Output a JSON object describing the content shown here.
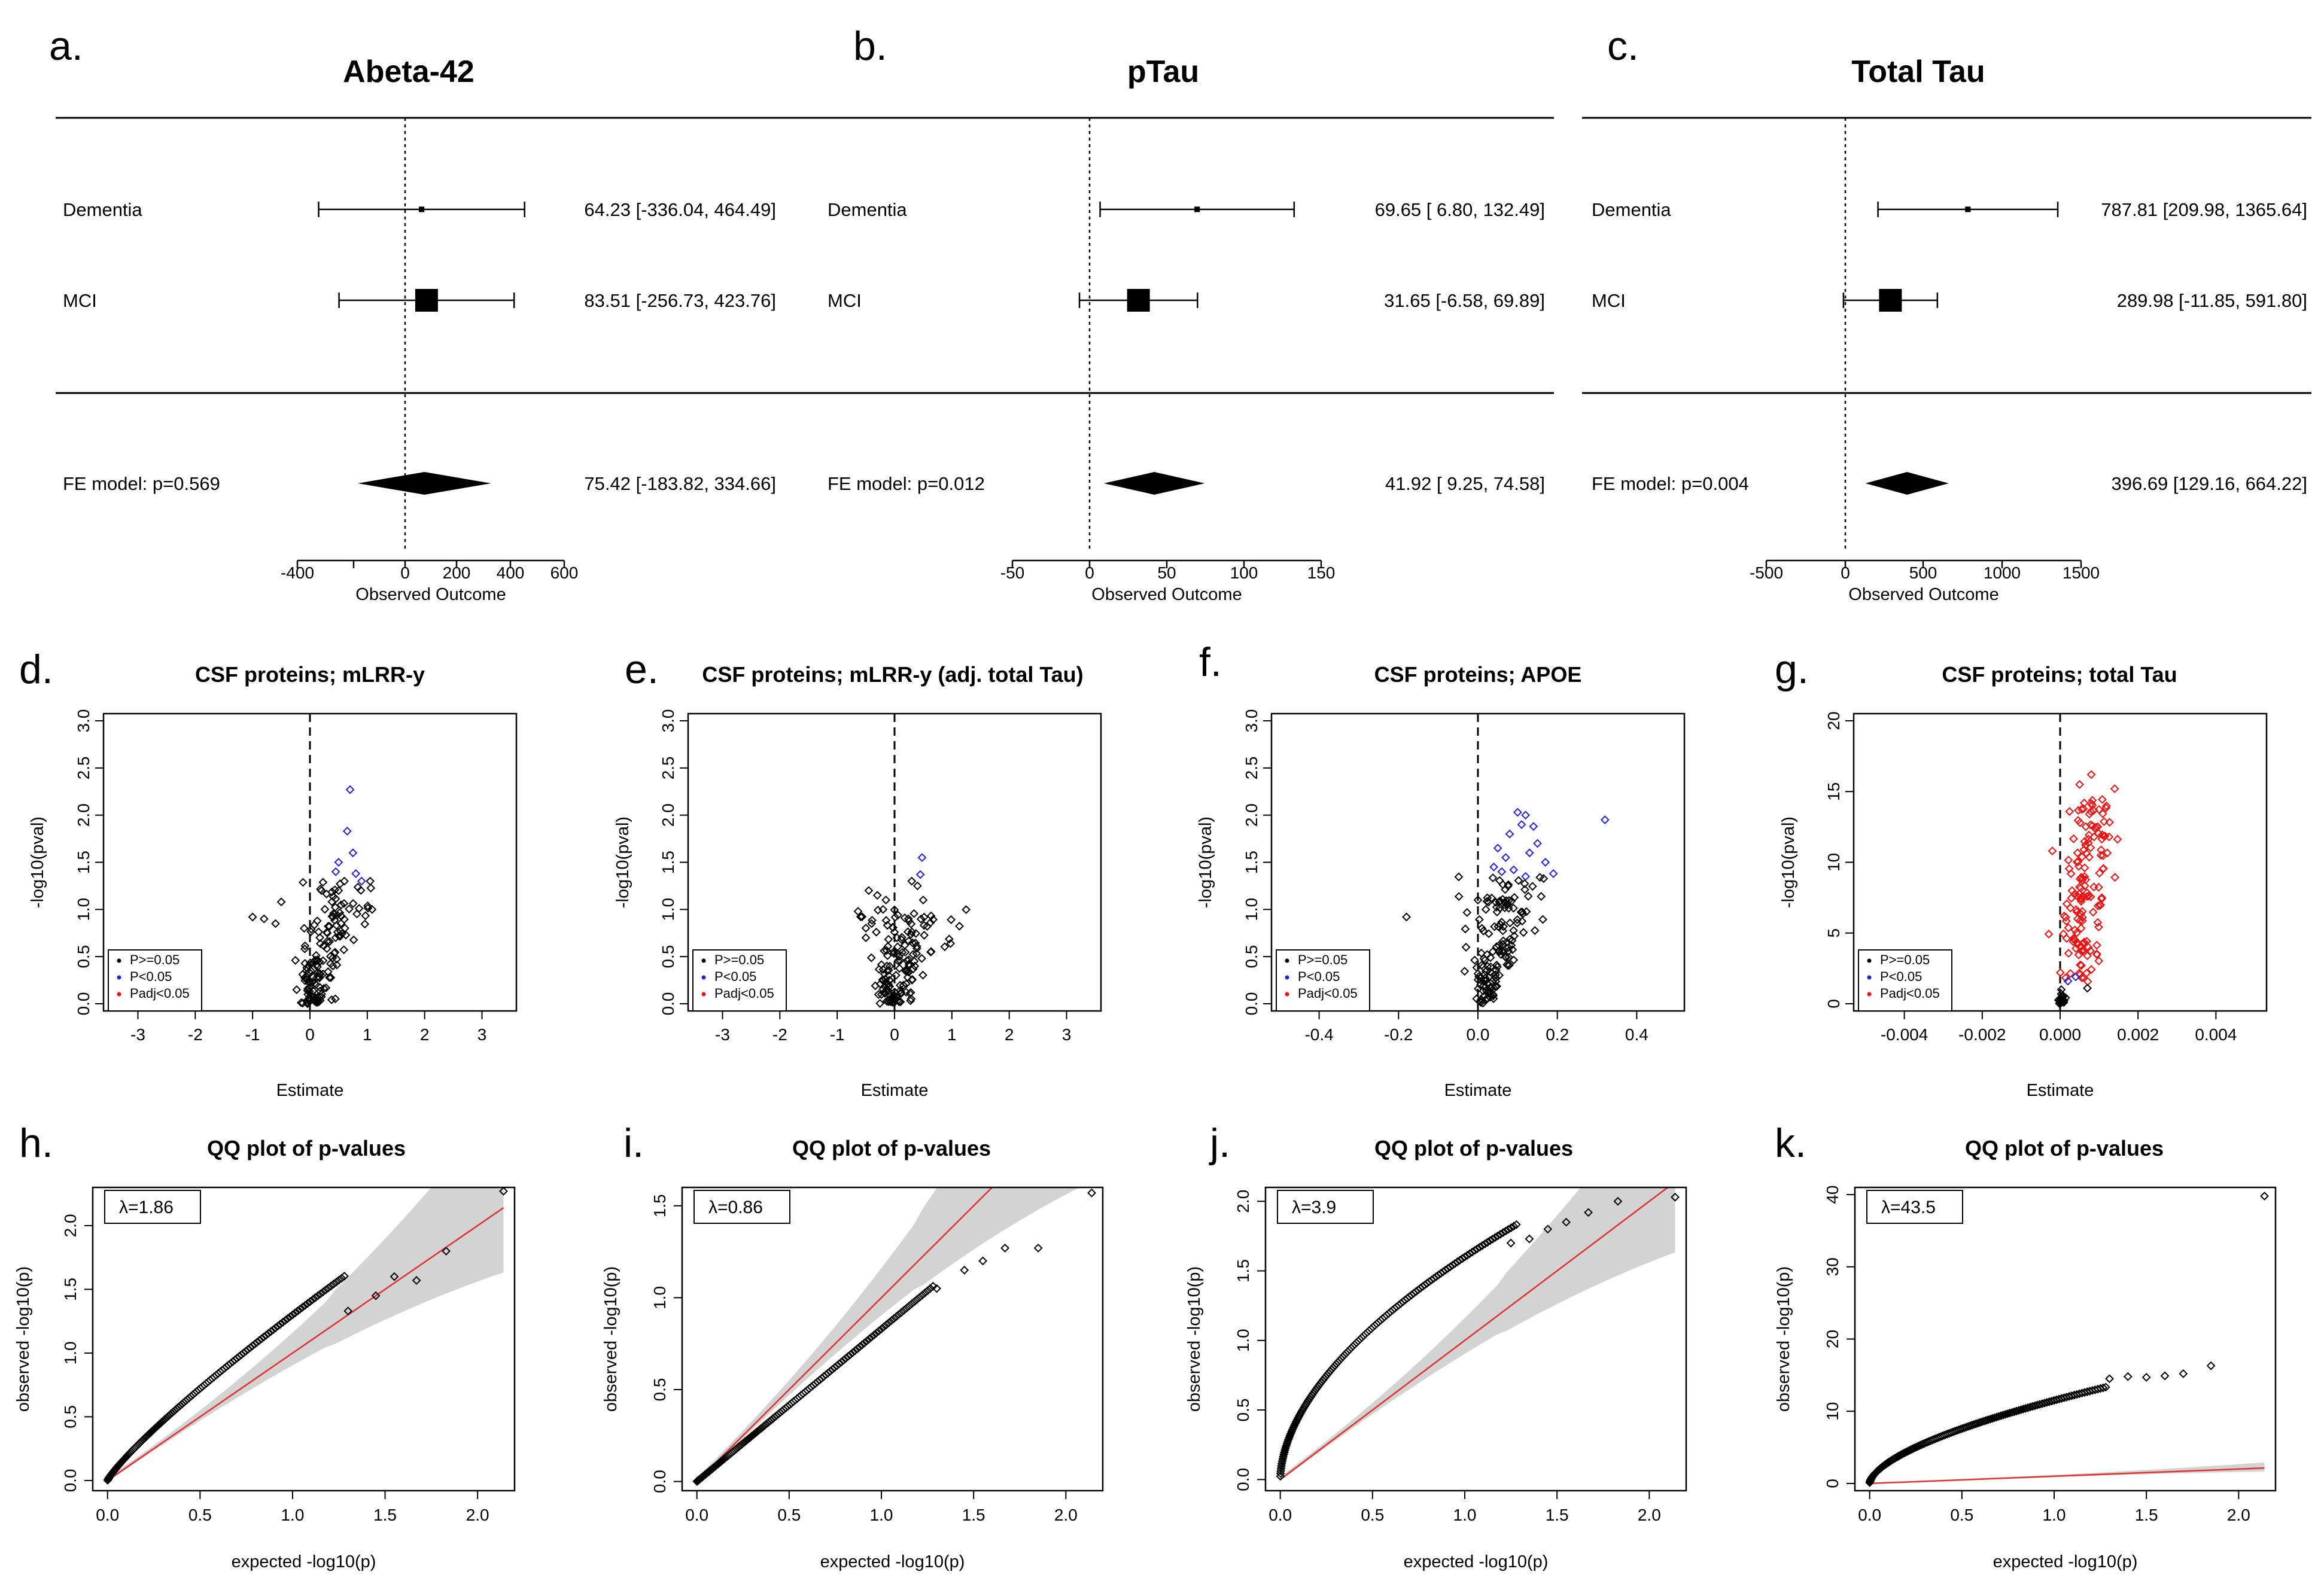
{
  "panels": {
    "a": "a.",
    "b": "b.",
    "c": "c.",
    "d": "d.",
    "e": "e.",
    "f": "f.",
    "g": "g.",
    "h": "h.",
    "i": "i.",
    "j": "j.",
    "k": "k."
  },
  "colors": {
    "p_ge_05": "#000000",
    "p_lt_05": "#2222dd",
    "padj_lt_05": "#ee1111",
    "qq_band": "#d3d3d3",
    "qq_line": "#e03030"
  },
  "chart_data": [
    {
      "id": "a",
      "type": "forest",
      "title": "Abeta-42",
      "xlabel": "Observed Outcome",
      "ticks": [
        -400,
        0,
        200,
        400,
        600
      ],
      "tick_labels": [
        "-400",
        "0",
        "200",
        "400",
        "600"
      ],
      "studies": [
        {
          "label": "Dementia",
          "est": 64.23,
          "lo": -336.04,
          "hi": 464.49,
          "weight": 0.1,
          "text": "64.23 [-336.04, 464.49]"
        },
        {
          "label": "MCI",
          "est": 83.51,
          "lo": -256.73,
          "hi": 423.76,
          "weight": 1.0,
          "text": "83.51 [-256.73, 423.76]"
        }
      ],
      "summary": {
        "label": "FE model: p=0.569",
        "est": 75.42,
        "lo": -183.82,
        "hi": 334.66,
        "text": "75.42 [-183.82, 334.66]"
      }
    },
    {
      "id": "b",
      "type": "forest",
      "title": "pTau",
      "xlabel": "Observed Outcome",
      "ticks": [
        -50,
        0,
        50,
        100,
        150
      ],
      "tick_labels": [
        "-50",
        "0",
        "50",
        "100",
        "150"
      ],
      "studies": [
        {
          "label": "Dementia",
          "est": 69.65,
          "lo": 6.8,
          "hi": 132.49,
          "weight": 0.1,
          "text": "69.65 [ 6.80, 132.49]"
        },
        {
          "label": "MCI",
          "est": 31.65,
          "lo": -6.58,
          "hi": 69.89,
          "weight": 1.0,
          "text": "31.65 [-6.58,  69.89]"
        }
      ],
      "summary": {
        "label": "FE model: p=0.012",
        "est": 41.92,
        "lo": 9.25,
        "hi": 74.58,
        "text": "41.92 [ 9.25,  74.58]"
      }
    },
    {
      "id": "c",
      "type": "forest",
      "title": "Total Tau",
      "xlabel": "Observed Outcome",
      "ticks": [
        -500,
        0,
        500,
        1000,
        1500
      ],
      "tick_labels": [
        "-500",
        "0",
        "500",
        "1000",
        "1500"
      ],
      "studies": [
        {
          "label": "Dementia",
          "est": 787.81,
          "lo": 209.98,
          "hi": 1365.64,
          "weight": 0.1,
          "text": "787.81 [209.98, 1365.64]"
        },
        {
          "label": "MCI",
          "est": 289.98,
          "lo": -11.85,
          "hi": 591.8,
          "weight": 1.0,
          "text": "289.98 [-11.85,  591.80]"
        }
      ],
      "summary": {
        "label": "FE model: p=0.004",
        "est": 396.69,
        "lo": 129.16,
        "hi": 664.22,
        "text": "396.69 [129.16,  664.22]"
      }
    },
    {
      "id": "d",
      "type": "scatter",
      "title": "CSF proteins; mLRR-y",
      "xlabel": "Estimate",
      "ylabel": "-log10(pval)",
      "xlim": [
        -3.6,
        3.6
      ],
      "ylim": [
        0,
        3.0
      ],
      "xticks": [
        -3,
        -2,
        -1,
        0,
        1,
        2,
        3
      ],
      "xtick_labels": [
        "-3",
        "-2",
        "-1",
        "0",
        "1",
        "2",
        "3"
      ],
      "yticks": [
        0,
        0.5,
        1.0,
        1.5,
        2.0,
        2.5,
        3.0
      ],
      "ytick_labels": [
        "0.0",
        "0.5",
        "1.0",
        "1.5",
        "2.0",
        "2.5",
        "3.0"
      ],
      "legend": [
        "P>=0.05",
        "P<0.05",
        "Padj<0.05"
      ],
      "seed": 11,
      "cluster": {
        "n": 150,
        "x0": 0.15,
        "xs": 0.55,
        "xn": 0.25,
        "ymax": 1.3
      },
      "extra_black": [
        [
          -0.5,
          1.08
        ],
        [
          -1.0,
          0.92
        ],
        [
          -0.8,
          0.9
        ],
        [
          -0.6,
          0.85
        ],
        [
          0.2,
          1.2
        ],
        [
          0.5,
          1.2
        ],
        [
          0.6,
          1.3
        ],
        [
          -0.1,
          0.8
        ],
        [
          1.05,
          1.3
        ]
      ],
      "sig": [
        [
          0.7,
          2.27
        ],
        [
          0.65,
          1.83
        ],
        [
          0.75,
          1.6
        ],
        [
          0.5,
          1.5
        ],
        [
          0.8,
          1.38
        ],
        [
          0.45,
          1.4
        ],
        [
          0.9,
          1.3
        ]
      ],
      "padj": []
    },
    {
      "id": "e",
      "type": "scatter",
      "title": "CSF proteins; mLRR-y (adj. total Tau)",
      "xlabel": "Estimate",
      "ylabel": "-log10(pval)",
      "xlim": [
        -3.6,
        3.6
      ],
      "ylim": [
        0,
        3.0
      ],
      "xticks": [
        -3,
        -2,
        -1,
        0,
        1,
        2,
        3
      ],
      "xtick_labels": [
        "-3",
        "-2",
        "-1",
        "0",
        "1",
        "2",
        "3"
      ],
      "yticks": [
        0,
        0.5,
        1.0,
        1.5,
        2.0,
        2.5,
        3.0
      ],
      "ytick_labels": [
        "0.0",
        "0.5",
        "1.0",
        "1.5",
        "2.0",
        "2.5",
        "3.0"
      ],
      "legend": [
        "P>=0.05",
        "P<0.05",
        "Padj<0.05"
      ],
      "seed": 23,
      "cluster": {
        "n": 150,
        "x0": 0.0,
        "xs": 0.3,
        "xn": 0.3,
        "ymax": 1.0
      },
      "extra_black": [
        [
          -0.45,
          1.2
        ],
        [
          -0.3,
          1.15
        ],
        [
          -0.2,
          1.0
        ],
        [
          -0.15,
          1.1
        ],
        [
          0.4,
          1.25
        ],
        [
          0.5,
          1.1
        ],
        [
          -0.4,
          0.85
        ],
        [
          0.3,
          1.3
        ],
        [
          -0.5,
          0.7
        ]
      ],
      "sig": [
        [
          0.48,
          1.55
        ],
        [
          0.45,
          1.37
        ]
      ],
      "padj": []
    },
    {
      "id": "f",
      "type": "scatter",
      "title": "CSF proteins; APOE",
      "xlabel": "Estimate",
      "ylabel": "-log10(pval)",
      "xlim": [
        -0.52,
        0.52
      ],
      "ylim": [
        0,
        3.0
      ],
      "xticks": [
        -0.4,
        -0.2,
        0,
        0.2,
        0.4
      ],
      "xtick_labels": [
        "-0.4",
        "-0.2",
        "0.0",
        "0.2",
        "0.4"
      ],
      "yticks": [
        0,
        0.5,
        1.0,
        1.5,
        2.0,
        2.5,
        3.0
      ],
      "ytick_labels": [
        "0.0",
        "0.5",
        "1.0",
        "1.5",
        "2.0",
        "2.5",
        "3.0"
      ],
      "legend": [
        "P>=0.05",
        "P<0.05",
        "Padj<0.05"
      ],
      "seed": 37,
      "cluster": {
        "n": 150,
        "x0": 0.07,
        "xs": 0.07,
        "xn": 0.04,
        "ymax": 1.35
      },
      "extra_black": [
        [
          -0.18,
          0.92
        ],
        [
          -0.03,
          0.6
        ],
        [
          0.01,
          0.8
        ],
        [
          0.0,
          1.1
        ],
        [
          0.02,
          1.0
        ]
      ],
      "sig": [
        [
          0.32,
          1.95
        ],
        [
          0.1,
          2.03
        ],
        [
          0.12,
          2.0
        ],
        [
          0.11,
          1.9
        ],
        [
          0.14,
          1.88
        ],
        [
          0.08,
          1.8
        ],
        [
          0.15,
          1.7
        ],
        [
          0.05,
          1.65
        ],
        [
          0.13,
          1.6
        ],
        [
          0.07,
          1.55
        ],
        [
          0.17,
          1.5
        ],
        [
          0.04,
          1.45
        ],
        [
          0.09,
          1.42
        ],
        [
          0.19,
          1.38
        ],
        [
          0.12,
          1.35
        ],
        [
          0.06,
          1.4
        ]
      ],
      "padj": []
    },
    {
      "id": "g",
      "type": "scatter",
      "title": "CSF proteins; total Tau",
      "xlabel": "Estimate",
      "ylabel": "-log10(pval)",
      "xlim": [
        -0.0053,
        0.0053
      ],
      "ylim": [
        0,
        20
      ],
      "xticks": [
        -0.004,
        -0.002,
        0,
        0.002,
        0.004
      ],
      "xtick_labels": [
        "-0.004",
        "-0.002",
        "0.000",
        "0.002",
        "0.004"
      ],
      "yticks": [
        0,
        5,
        10,
        15,
        20
      ],
      "ytick_labels": [
        "0",
        "5",
        "10",
        "15",
        "20"
      ],
      "legend": [
        "P>=0.05",
        "P<0.05",
        "Padj<0.05"
      ],
      "seed": 51,
      "cluster": {
        "n": 20,
        "x0": 0.0001,
        "xs": 0.0001,
        "xn": 0.0001,
        "ymax": 1.0
      },
      "red_cluster": {
        "n": 150,
        "x0": 0.0003,
        "xs": 0.0006,
        "xn": 0.00025,
        "ymax": 14.5
      },
      "extra_black": [
        [
          0.0007,
          1.1
        ]
      ],
      "sig": [
        [
          0.0002,
          1.6
        ],
        [
          0.0004,
          1.9
        ]
      ],
      "padj": [
        [
          0.0008,
          16.2
        ],
        [
          0.0014,
          15.2
        ],
        [
          -0.0002,
          10.8
        ],
        [
          0.0005,
          15.5
        ]
      ]
    },
    {
      "id": "h",
      "type": "qq",
      "title": "QQ plot of p-values",
      "lambda": "λ=1.86",
      "lambda_value": 1.86,
      "xlabel": "expected -log10(p)",
      "ylabel": "observed -log10(p)",
      "xlim": [
        -0.08,
        2.2
      ],
      "ylim": [
        -0.08,
        2.3
      ],
      "xticks": [
        0,
        0.5,
        1.0,
        1.5,
        2.0
      ],
      "xtick_labels": [
        "0.0",
        "0.5",
        "1.0",
        "1.5",
        "2.0"
      ],
      "yticks": [
        0,
        0.5,
        1.0,
        1.5,
        2.0
      ],
      "ytick_labels": [
        "0.0",
        "0.5",
        "1.0",
        "1.5",
        "2.0"
      ],
      "slope": 1.0,
      "curve_scale": 1.3,
      "curve_power": 0.85,
      "top": [
        [
          1.3,
          1.33
        ],
        [
          1.45,
          1.45
        ],
        [
          1.55,
          1.6
        ],
        [
          1.67,
          1.57
        ],
        [
          1.83,
          1.8
        ],
        [
          2.14,
          2.27
        ]
      ]
    },
    {
      "id": "i",
      "type": "qq",
      "title": "QQ plot of p-values",
      "lambda": "λ=0.86",
      "lambda_value": 0.86,
      "xlabel": "expected -log10(p)",
      "ylabel": "observed -log10(p)",
      "xlim": [
        -0.08,
        2.2
      ],
      "ylim": [
        -0.05,
        1.6
      ],
      "xticks": [
        0,
        0.5,
        1.0,
        1.5,
        2.0
      ],
      "xtick_labels": [
        "0.0",
        "0.5",
        "1.0",
        "1.5",
        "2.0"
      ],
      "yticks": [
        0,
        0.5,
        1.0,
        1.5
      ],
      "ytick_labels": [
        "0.0",
        "0.5",
        "1.0",
        "1.5"
      ],
      "slope": 1.0,
      "curve_scale": 0.83,
      "curve_power": 1.0,
      "top": [
        [
          1.3,
          1.05
        ],
        [
          1.45,
          1.15
        ],
        [
          1.55,
          1.2
        ],
        [
          1.67,
          1.27
        ],
        [
          1.85,
          1.27
        ],
        [
          2.14,
          1.57
        ]
      ]
    },
    {
      "id": "j",
      "type": "qq",
      "title": "QQ plot of p-values",
      "lambda": "λ=3.9",
      "lambda_value": 3.9,
      "xlabel": "expected -log10(p)",
      "ylabel": "observed -log10(p)",
      "xlim": [
        -0.08,
        2.2
      ],
      "ylim": [
        -0.08,
        2.1
      ],
      "xticks": [
        0,
        0.5,
        1.0,
        1.5,
        2.0
      ],
      "xtick_labels": [
        "0.0",
        "0.5",
        "1.0",
        "1.5",
        "2.0"
      ],
      "yticks": [
        0,
        0.5,
        1.0,
        1.5,
        2.0
      ],
      "ytick_labels": [
        "0.0",
        "0.5",
        "1.0",
        "1.5",
        "2.0"
      ],
      "slope": 1.0,
      "curve_scale": 1.6,
      "curve_power": 0.55,
      "top": [
        [
          1.25,
          1.7
        ],
        [
          1.35,
          1.73
        ],
        [
          1.45,
          1.8
        ],
        [
          1.55,
          1.85
        ],
        [
          1.67,
          1.92
        ],
        [
          1.83,
          2.0
        ],
        [
          2.14,
          2.03
        ]
      ]
    },
    {
      "id": "k",
      "type": "qq",
      "title": "QQ plot of p-values",
      "lambda": "λ=43.5",
      "lambda_value": 43.5,
      "xlabel": "expected -log10(p)",
      "ylabel": "observed -log10(p)",
      "xlim": [
        -0.08,
        2.2
      ],
      "ylim": [
        -1,
        41
      ],
      "xticks": [
        0,
        0.5,
        1.0,
        1.5,
        2.0
      ],
      "xtick_labels": [
        "0.0",
        "0.5",
        "1.0",
        "1.5",
        "2.0"
      ],
      "yticks": [
        0,
        10,
        20,
        30,
        40
      ],
      "ytick_labels": [
        "0",
        "10",
        "20",
        "30",
        "40"
      ],
      "slope": 1.0,
      "curve_scale": 11.5,
      "curve_power": 0.6,
      "top": [
        [
          1.3,
          14.5
        ],
        [
          1.4,
          14.8
        ],
        [
          1.5,
          14.7
        ],
        [
          1.6,
          14.9
        ],
        [
          1.7,
          15.2
        ],
        [
          1.85,
          16.3
        ],
        [
          2.14,
          39.8
        ]
      ]
    }
  ]
}
